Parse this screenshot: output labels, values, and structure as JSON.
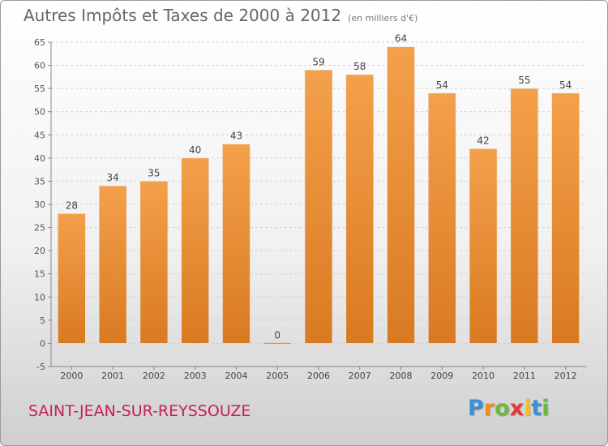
{
  "chart_data": {
    "type": "bar",
    "title": "Autres Impôts et Taxes de 2000 à 2012",
    "subtitle": "(en milliers d'€)",
    "categories": [
      "2000",
      "2001",
      "2002",
      "2003",
      "2004",
      "2005",
      "2006",
      "2007",
      "2008",
      "2009",
      "2010",
      "2011",
      "2012"
    ],
    "values": [
      28,
      34,
      35,
      40,
      43,
      0,
      59,
      58,
      64,
      54,
      42,
      55,
      54
    ],
    "ylim": [
      -5,
      65
    ],
    "yticks": [
      -5,
      0,
      5,
      10,
      15,
      20,
      25,
      30,
      35,
      40,
      45,
      50,
      55,
      60,
      65
    ],
    "grid": "horizontal-dashed",
    "xlabel": "",
    "ylabel": "",
    "bar_color": "#f4a04a",
    "bar_color_dark": "#d97a22"
  },
  "footer": {
    "place": "SAINT-JEAN-SUR-REYSSOUZE",
    "logo": [
      {
        "ch": "P",
        "color": "#3a8fd6"
      },
      {
        "ch": "r",
        "color": "#f08a24"
      },
      {
        "ch": "o",
        "color": "#6cba3c"
      },
      {
        "ch": "x",
        "color": "#e53935"
      },
      {
        "ch": "i",
        "color": "#f7c21b"
      },
      {
        "ch": "t",
        "color": "#3a8fd6"
      },
      {
        "ch": "i",
        "color": "#6cba3c"
      }
    ]
  }
}
